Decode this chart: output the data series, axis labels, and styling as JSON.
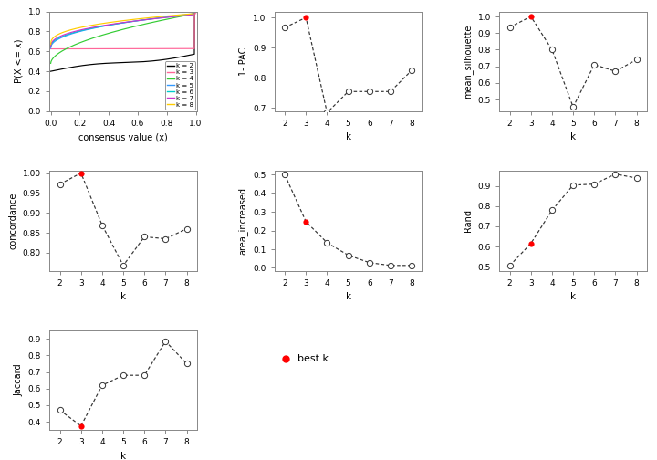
{
  "k_values": [
    2,
    3,
    4,
    5,
    6,
    7,
    8
  ],
  "pac_1minus": [
    0.967,
    1.0,
    0.685,
    0.755,
    0.755,
    0.755,
    0.825
  ],
  "mean_silhouette": [
    0.935,
    1.0,
    0.8,
    0.455,
    0.71,
    0.67,
    0.74
  ],
  "concordance": [
    0.972,
    1.0,
    0.869,
    0.768,
    0.84,
    0.835,
    0.86
  ],
  "area_increased": [
    0.5,
    0.248,
    0.135,
    0.068,
    0.028,
    0.013,
    0.013
  ],
  "rand": [
    0.505,
    0.615,
    0.78,
    0.905,
    0.91,
    0.96,
    0.94
  ],
  "jaccard": [
    0.47,
    0.375,
    0.62,
    0.68,
    0.68,
    0.885,
    0.75
  ],
  "best_k": 3,
  "ecdf_colors": [
    "#000000",
    "#FF6699",
    "#33CC33",
    "#3399FF",
    "#00CCCC",
    "#CC33CC",
    "#FFCC00"
  ],
  "ecdf_labels": [
    "k = 2",
    "k = 3",
    "k = 4",
    "k = 5",
    "k = 6",
    "k = 7",
    "k = 8"
  ],
  "bg_color": "#ffffff",
  "open_circle_color": "#ffffff",
  "open_circle_edge": "#333333",
  "filled_circle_color": "#FF0000",
  "line_color": "#333333"
}
